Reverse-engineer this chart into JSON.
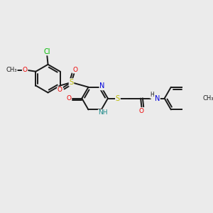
{
  "bg_color": "#ebebeb",
  "bond_color": "#1a1a1a",
  "atom_colors": {
    "Cl": "#00bb00",
    "O": "#ee0000",
    "N": "#0000dd",
    "S": "#bbbb00",
    "C": "#1a1a1a",
    "H": "#1a1a1a",
    "NH": "#1a8888"
  },
  "figsize": [
    3.0,
    3.0
  ],
  "dpi": 100
}
